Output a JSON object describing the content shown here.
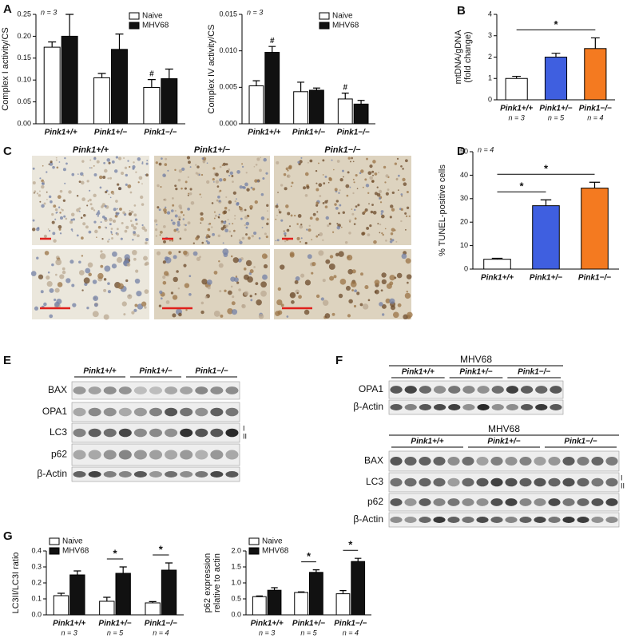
{
  "panel_labels": [
    "A",
    "B",
    "C",
    "D",
    "E",
    "F",
    "G"
  ],
  "chart_data": [
    {
      "type": "bar",
      "ylabel": "Complex I activity/CS",
      "note": "n = 3",
      "categories": [
        "Pink1+/+",
        "Pink1+/−",
        "Pink1−/−"
      ],
      "series": [
        {
          "name": "Naive",
          "color": "#ffffff",
          "values": [
            0.175,
            0.105,
            0.083
          ],
          "errors": [
            0.012,
            0.01,
            0.018
          ]
        },
        {
          "name": "MHV68",
          "color": "#111111",
          "values": [
            0.2,
            0.17,
            0.103
          ],
          "errors": [
            0.05,
            0.035,
            0.022
          ]
        }
      ],
      "annotations": [
        {
          "series": 0,
          "index": 2,
          "text": "#"
        }
      ],
      "ylim": [
        0,
        0.25
      ],
      "yticks": [
        {
          "value": 0,
          "label": "0.00"
        },
        0.05,
        {
          "value": 0.1,
          "label": "0.10"
        },
        0.15,
        {
          "value": 0.2,
          "label": "0.20"
        },
        0.25
      ],
      "legend": "upper right"
    },
    {
      "type": "bar",
      "ylabel": "Complex IV activity/CS",
      "note": "n = 3",
      "categories": [
        "Pink1+/+",
        "Pink1+/−",
        "Pink1−/−"
      ],
      "series": [
        {
          "name": "Naive",
          "color": "#ffffff",
          "values": [
            0.0052,
            0.0044,
            0.0034
          ],
          "errors": [
            0.0007,
            0.0013,
            0.0008
          ]
        },
        {
          "name": "MHV68",
          "color": "#111111",
          "values": [
            0.0098,
            0.0046,
            0.0027
          ],
          "errors": [
            0.0008,
            0.0003,
            0.0005
          ]
        }
      ],
      "annotations": [
        {
          "series": 1,
          "index": 0,
          "text": "#"
        },
        {
          "series": 0,
          "index": 2,
          "text": "#"
        }
      ],
      "ylim": [
        0,
        0.015
      ],
      "yticks": [
        {
          "value": 0,
          "label": "0.000"
        },
        0.005,
        {
          "value": 0.01,
          "label": "0.010"
        },
        0.015
      ],
      "legend": "upper right"
    },
    {
      "type": "bar",
      "ylabel": "mtDNA/gDNA",
      "ylabel2": "(fold change)",
      "categories": [
        "Pink1+/+",
        "Pink1+/−",
        "Pink1−/−"
      ],
      "sublabels": [
        "n = 3",
        "n = 5",
        "n = 4"
      ],
      "values": [
        1,
        2,
        2.4
      ],
      "errors": [
        0.1,
        0.18,
        0.5
      ],
      "colors": [
        "#ffffff",
        "#3f5fe0",
        "#f47a20"
      ],
      "significance": [
        {
          "from": 0,
          "to": 2,
          "text": "*"
        }
      ],
      "ylim": [
        0,
        4
      ],
      "yticks": [
        0,
        1,
        2,
        3,
        4
      ]
    },
    {
      "type": "bar",
      "ylabel": "% TUNEL-positive cells",
      "note": "n = 4",
      "categories": [
        "Pink1+/+",
        "Pink1+/−",
        "Pink1−/−"
      ],
      "values": [
        4.2,
        27,
        34.5
      ],
      "errors": [
        0.4,
        2.5,
        2.5
      ],
      "colors": [
        "#ffffff",
        "#3f5fe0",
        "#f47a20"
      ],
      "significance": [
        {
          "from": 0,
          "to": 1,
          "text": "*"
        },
        {
          "from": 0,
          "to": 2,
          "text": "*"
        }
      ],
      "ylim": [
        0,
        50
      ],
      "yticks": [
        0,
        10,
        20,
        30,
        40,
        50
      ]
    },
    {
      "type": "bar",
      "ylabel": "LC3II/LC3I ratio",
      "categories": [
        "Pink1+/+",
        "Pink1+/−",
        "Pink1−/−"
      ],
      "sublabels": [
        "n = 3",
        "n = 5",
        "n = 4"
      ],
      "series": [
        {
          "name": "Naive",
          "color": "#ffffff",
          "values": [
            0.12,
            0.085,
            0.075
          ],
          "errors": [
            0.015,
            0.025,
            0.008
          ]
        },
        {
          "name": "MHV68",
          "color": "#111111",
          "values": [
            0.25,
            0.26,
            0.28
          ],
          "errors": [
            0.025,
            0.04,
            0.045
          ]
        }
      ],
      "significance": [
        {
          "index": 1,
          "text": "*"
        },
        {
          "index": 2,
          "text": "*"
        }
      ],
      "ylim": [
        0,
        0.4
      ],
      "yticks": [
        {
          "value": 0,
          "label": "0.0"
        },
        0.1,
        0.2,
        0.3,
        0.4
      ],
      "legend": "upper left"
    },
    {
      "type": "bar",
      "ylabel": "p62 expression",
      "ylabel2": "relative to actin",
      "categories": [
        "Pink1+/+",
        "Pink1+/−",
        "Pink1−/−"
      ],
      "sublabels": [
        "n = 3",
        "n = 5",
        "n = 4"
      ],
      "series": [
        {
          "name": "Naive",
          "color": "#ffffff",
          "values": [
            0.57,
            0.7,
            0.66
          ],
          "errors": [
            0.02,
            0.02,
            0.1
          ]
        },
        {
          "name": "MHV68",
          "color": "#111111",
          "values": [
            0.77,
            1.33,
            1.67
          ],
          "errors": [
            0.08,
            0.08,
            0.1
          ]
        }
      ],
      "significance": [
        {
          "index": 1,
          "text": "*"
        },
        {
          "index": 2,
          "text": "*"
        }
      ],
      "ylim": [
        0,
        2
      ],
      "yticks": [
        {
          "value": 0,
          "label": "0.0"
        },
        0.5,
        {
          "value": 1,
          "label": "1.0"
        },
        1.5,
        {
          "value": 2,
          "label": "2.0"
        }
      ],
      "legend": "upper left"
    }
  ],
  "micrographs": {
    "columns": [
      "Pink1+/+",
      "Pink1+/−",
      "Pink1−/−"
    ]
  },
  "blot_E": {
    "groups": [
      "Pink1+/+",
      "Pink1+/−",
      "Pink1−/−"
    ],
    "rows": [
      "BAX",
      "OPA1",
      "LC3",
      "p62",
      "β-Actin"
    ],
    "bands": [
      "I",
      "II"
    ]
  },
  "blot_F": {
    "top": {
      "title": "MHV68",
      "groups": [
        "Pink1+/+",
        "Pink1+/−",
        "Pink1−/−"
      ],
      "rows": [
        "OPA1",
        "β-Actin"
      ]
    },
    "bottom": {
      "title": "MHV68",
      "groups": [
        "Pink1+/+",
        "Pink1+/−",
        "Pink1−/−"
      ],
      "rows": [
        "BAX",
        "LC3",
        "p62",
        "β-Actin"
      ],
      "bands": [
        "I",
        "II"
      ]
    }
  }
}
